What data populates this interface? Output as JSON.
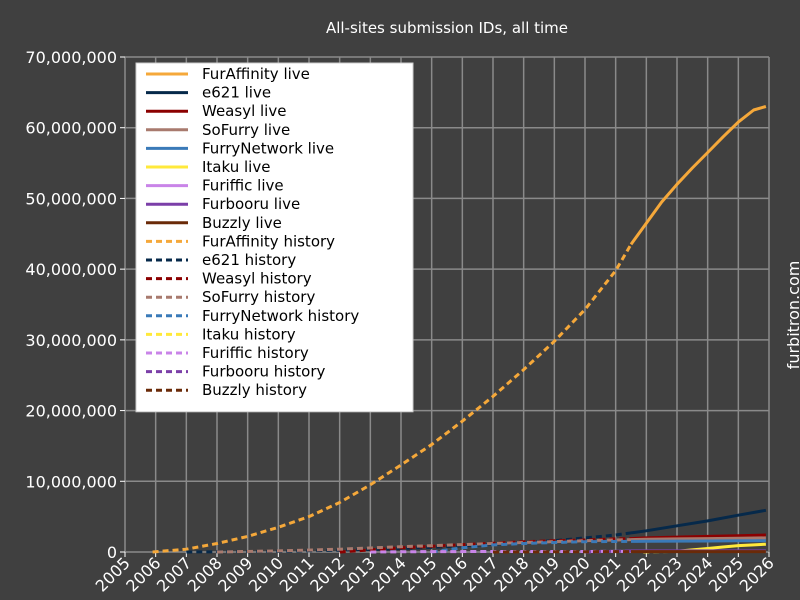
{
  "chart_data": {
    "type": "line",
    "title": "All-sites submission IDs, all time",
    "side_label": "furbitron.com",
    "x_ticks": [
      "2005",
      "2006",
      "2007",
      "2008",
      "2009",
      "2010",
      "2011",
      "2012",
      "2013",
      "2014",
      "2015",
      "2016",
      "2017",
      "2018",
      "2019",
      "2020",
      "2021",
      "2022",
      "2023",
      "2024",
      "2025",
      "2026"
    ],
    "y_ticks": [
      "0",
      "10,000,000",
      "20,000,000",
      "30,000,000",
      "40,000,000",
      "50,000,000",
      "60,000,000",
      "70,000,000"
    ],
    "xlim": [
      2005,
      2026
    ],
    "ylim": [
      0,
      70000000
    ],
    "grid": true,
    "legend_placement": "upper-left",
    "colors": {
      "background": "#404040",
      "grid": "#8a8a8a",
      "text": "#ffffff",
      "legend_bg": "#ffffff"
    },
    "series": [
      {
        "name": "FurAffinity live",
        "color": "#f5a83a",
        "dash": "solid",
        "x": [
          2021.5,
          2022,
          2022.5,
          2023,
          2023.5,
          2024,
          2024.5,
          2025,
          2025.5,
          2025.9
        ],
        "y": [
          43500000,
          46500000,
          49500000,
          52000000,
          54300000,
          56500000,
          58700000,
          60800000,
          62500000,
          63000000
        ]
      },
      {
        "name": "e621 live",
        "color": "#06294a",
        "dash": "solid",
        "x": [
          2021.5,
          2022,
          2023,
          2024,
          2025,
          2025.9
        ],
        "y": [
          2700000,
          3000000,
          3700000,
          4400000,
          5200000,
          5900000
        ]
      },
      {
        "name": "Weasyl live",
        "color": "#8b0000",
        "dash": "solid",
        "x": [
          2021.5,
          2022,
          2023,
          2024,
          2025,
          2025.9
        ],
        "y": [
          1900000,
          2000000,
          2100000,
          2200000,
          2300000,
          2400000
        ]
      },
      {
        "name": "SoFurry live",
        "color": "#a87a6e",
        "dash": "solid",
        "x": [
          2021.5,
          2022,
          2023,
          2024,
          2025,
          2025.9
        ],
        "y": [
          1750000,
          1800000,
          1850000,
          1900000,
          1950000,
          2000000
        ]
      },
      {
        "name": "FurryNetwork live",
        "color": "#3a7ab8",
        "dash": "solid",
        "x": [
          2021.5,
          2022,
          2023,
          2024,
          2025,
          2025.9
        ],
        "y": [
          1500000,
          1520000,
          1540000,
          1560000,
          1580000,
          1600000
        ]
      },
      {
        "name": "Itaku live",
        "color": "#ffe93b",
        "dash": "solid",
        "x": [
          2023.0,
          2023.5,
          2024,
          2024.5,
          2025,
          2025.5,
          2025.9
        ],
        "y": [
          100000,
          300000,
          500000,
          700000,
          900000,
          1000000,
          1100000
        ]
      },
      {
        "name": "Furiffic live",
        "color": "#c984e8",
        "dash": "solid",
        "x": [
          2021.5,
          2025.9
        ],
        "y": [
          80000,
          80000
        ]
      },
      {
        "name": "Furbooru live",
        "color": "#7b3fa8",
        "dash": "solid",
        "x": [
          2021.5,
          2025.9
        ],
        "y": [
          150000,
          150000
        ]
      },
      {
        "name": "Buzzly live",
        "color": "#6a2a08",
        "dash": "solid",
        "x": [
          2021.5,
          2025.9
        ],
        "y": [
          60000,
          60000
        ]
      },
      {
        "name": "FurAffinity history",
        "color": "#f5a83a",
        "dash": "dashed",
        "x": [
          2005.9,
          2007,
          2008,
          2009,
          2010,
          2011,
          2012,
          2013,
          2014,
          2015,
          2016,
          2017,
          2018,
          2019,
          2020,
          2021,
          2021.5
        ],
        "y": [
          0,
          400000,
          1200000,
          2200000,
          3500000,
          5000000,
          7000000,
          9500000,
          12300000,
          15200000,
          18500000,
          22000000,
          25800000,
          29800000,
          34300000,
          39800000,
          43500000
        ]
      },
      {
        "name": "e621 history",
        "color": "#06294a",
        "dash": "dashed",
        "x": [
          2007,
          2010,
          2013,
          2015,
          2017,
          2019,
          2020,
          2021,
          2021.5
        ],
        "y": [
          0,
          80000,
          350000,
          650000,
          1100000,
          1600000,
          2000000,
          2400000,
          2700000
        ]
      },
      {
        "name": "Weasyl history",
        "color": "#8b0000",
        "dash": "dashed",
        "x": [
          2012,
          2013,
          2014,
          2015,
          2016,
          2017,
          2018,
          2019,
          2020,
          2021,
          2021.5
        ],
        "y": [
          0,
          300000,
          600000,
          800000,
          1050000,
          1250000,
          1450000,
          1600000,
          1700000,
          1850000,
          1900000
        ]
      },
      {
        "name": "SoFurry history",
        "color": "#a87a6e",
        "dash": "dashed",
        "x": [
          2008,
          2010,
          2012,
          2014,
          2016,
          2018,
          2020,
          2021.5
        ],
        "y": [
          0,
          150000,
          400000,
          750000,
          1050000,
          1350000,
          1600000,
          1750000
        ]
      },
      {
        "name": "FurryNetwork history",
        "color": "#3a7ab8",
        "dash": "dashed",
        "x": [
          2015,
          2016,
          2017,
          2018,
          2019,
          2020,
          2021.5
        ],
        "y": [
          0,
          600000,
          1000000,
          1200000,
          1350000,
          1450000,
          1500000
        ]
      },
      {
        "name": "Itaku history",
        "color": "#ffe93b",
        "dash": "dashed",
        "x": [
          2021.9,
          2022.5,
          2023.0
        ],
        "y": [
          0,
          50000,
          100000
        ]
      },
      {
        "name": "Furiffic history",
        "color": "#c984e8",
        "dash": "dashed",
        "x": [
          2013,
          2015,
          2018,
          2021.5
        ],
        "y": [
          0,
          50000,
          70000,
          80000
        ]
      },
      {
        "name": "Furbooru history",
        "color": "#7b3fa8",
        "dash": "dashed",
        "x": [
          2020,
          2020.5,
          2021,
          2021.5
        ],
        "y": [
          0,
          60000,
          110000,
          150000
        ]
      },
      {
        "name": "Buzzly history",
        "color": "#6a2a08",
        "dash": "dashed",
        "x": [
          2017,
          2019,
          2021.5
        ],
        "y": [
          0,
          30000,
          60000
        ]
      }
    ]
  }
}
